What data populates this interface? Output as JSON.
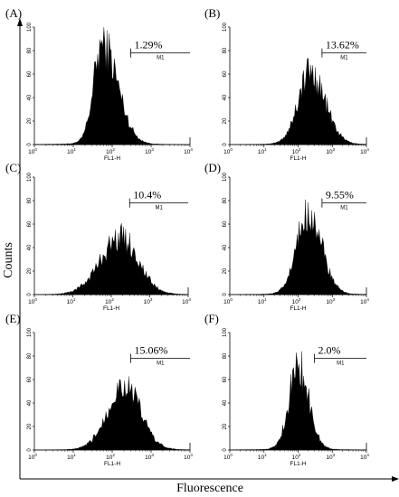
{
  "figure": {
    "y_title": "Counts",
    "x_title": "Fluorescence"
  },
  "chart_data": [
    {
      "type": "histogram",
      "panel": "(A)",
      "xlabel": "FL1-H",
      "x_scale": "log",
      "xlim": [
        1,
        10000
      ],
      "ylim": [
        0,
        100
      ],
      "x_ticks": [
        "0",
        "1",
        "2",
        "3",
        "4"
      ],
      "y_ticks": [
        0,
        20,
        40,
        60,
        80,
        100
      ],
      "marker": {
        "label": "M1",
        "range": [
          300,
          10000
        ],
        "percent": "1.29%"
      },
      "peak": {
        "log_center": 1.75,
        "width": 0.28,
        "height": 84,
        "skew": 0.4,
        "bg": 2
      }
    },
    {
      "type": "histogram",
      "panel": "(B)",
      "xlabel": "FL1-H",
      "x_scale": "log",
      "xlim": [
        1,
        10000
      ],
      "ylim": [
        0,
        100
      ],
      "x_ticks": [
        "0",
        "1",
        "2",
        "3",
        "4"
      ],
      "y_ticks": [
        0,
        20,
        40,
        60,
        80,
        100
      ],
      "marker": {
        "label": "M1",
        "range": [
          500,
          10000
        ],
        "percent": "13.62%"
      },
      "peak": {
        "log_center": 2.35,
        "width": 0.38,
        "height": 60,
        "skew": 0.15,
        "bg": 2
      }
    },
    {
      "type": "histogram",
      "panel": "(C)",
      "xlabel": "FL1-H",
      "x_scale": "log",
      "xlim": [
        1,
        10000
      ],
      "ylim": [
        0,
        100
      ],
      "x_ticks": [
        "0",
        "1",
        "2",
        "3",
        "4"
      ],
      "y_ticks": [
        0,
        20,
        40,
        60,
        80,
        100
      ],
      "marker": {
        "label": "M1",
        "range": [
          300,
          10000
        ],
        "percent": "10.4%"
      },
      "peak": {
        "log_center": 2.25,
        "width": 0.5,
        "height": 47,
        "skew": -0.1,
        "bg": 2
      }
    },
    {
      "type": "histogram",
      "panel": "(D)",
      "xlabel": "FL1-H",
      "x_scale": "log",
      "xlim": [
        1,
        10000
      ],
      "ylim": [
        0,
        100
      ],
      "x_ticks": [
        "0",
        "1",
        "2",
        "3",
        "4"
      ],
      "y_ticks": [
        0,
        20,
        40,
        60,
        80,
        100
      ],
      "marker": {
        "label": "M1",
        "range": [
          500,
          10000
        ],
        "percent": "9.55%"
      },
      "peak": {
        "log_center": 2.3,
        "width": 0.35,
        "height": 68,
        "skew": 0.1,
        "bg": 2
      }
    },
    {
      "type": "histogram",
      "panel": "(E)",
      "xlabel": "FL1-H",
      "x_scale": "log",
      "xlim": [
        1,
        10000
      ],
      "ylim": [
        0,
        100
      ],
      "x_ticks": [
        "0",
        "1",
        "2",
        "3",
        "4"
      ],
      "y_ticks": [
        0,
        20,
        40,
        60,
        80,
        100
      ],
      "marker": {
        "label": "M1",
        "range": [
          300,
          10000
        ],
        "percent": "15.06%"
      },
      "peak": {
        "log_center": 2.3,
        "width": 0.42,
        "height": 54,
        "skew": 0.0,
        "bg": 2
      }
    },
    {
      "type": "histogram",
      "panel": "(F)",
      "xlabel": "FL1-H",
      "x_scale": "log",
      "xlim": [
        1,
        10000
      ],
      "ylim": [
        0,
        100
      ],
      "x_ticks": [
        "0",
        "1",
        "2",
        "3",
        "4"
      ],
      "y_ticks": [
        0,
        20,
        40,
        60,
        80,
        100
      ],
      "marker": {
        "label": "M1",
        "range": [
          300,
          10000
        ],
        "percent": "2.0%"
      },
      "peak": {
        "log_center": 2.0,
        "width": 0.28,
        "height": 70,
        "skew": 0.1,
        "bg": 2
      }
    }
  ]
}
